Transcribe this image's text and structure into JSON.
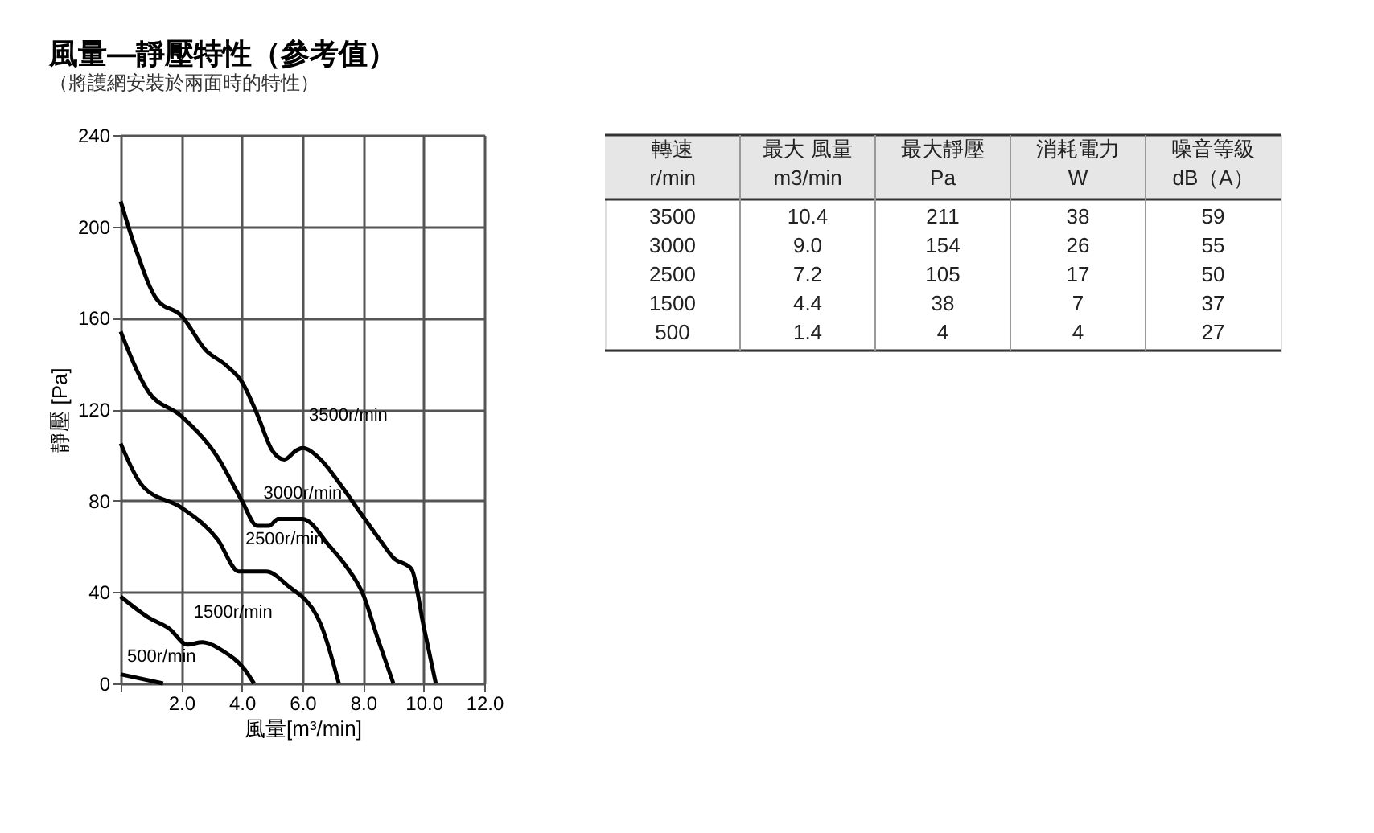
{
  "chart_data": {
    "type": "line",
    "title": "風量—靜壓特性（參考值）",
    "subtitle": "（將護網安裝於兩面時的特性）",
    "xlabel": "風量[m³/min]",
    "ylabel": "靜壓 [Pa]",
    "xlim": [
      0,
      12
    ],
    "ylim": [
      0,
      240
    ],
    "xticks": [
      {
        "value": 0,
        "label": null
      },
      {
        "value": 2,
        "label": "2.0"
      },
      {
        "value": 4,
        "label": "4.0"
      },
      {
        "value": 6,
        "label": "6.0"
      },
      {
        "value": 8,
        "label": "8.0"
      },
      {
        "value": 10,
        "label": "10.0"
      },
      {
        "value": 12,
        "label": "12.0"
      }
    ],
    "yticks": [
      0,
      40,
      80,
      120,
      160,
      200,
      240
    ],
    "grid": true,
    "line_style": "solid",
    "series": [
      {
        "color": "#000000",
        "x": [
          0,
          0.5,
          1.2,
          2.0,
          2.8,
          3.5,
          4.0,
          4.5,
          5.0,
          5.4,
          5.8,
          6.0,
          6.6,
          7.2,
          8.0,
          8.6,
          9.0,
          9.6,
          10.0,
          10.4
        ],
        "values": [
          211,
          190,
          168,
          161,
          146,
          139,
          132,
          118,
          102,
          98,
          102,
          103,
          98,
          88,
          73,
          62,
          55,
          50,
          25,
          0
        ]
      },
      {
        "color": "#000000",
        "x": [
          0,
          0.9,
          2.0,
          3.2,
          4.0,
          4.5,
          4.9,
          5.2,
          6.0,
          6.9,
          7.4,
          8.0,
          8.5,
          9.0
        ],
        "values": [
          154,
          128,
          117,
          99,
          80,
          69,
          69,
          72,
          72,
          60,
          52,
          39,
          19,
          0
        ]
      },
      {
        "color": "#000000",
        "x": [
          0,
          0.75,
          2.0,
          3.2,
          3.9,
          4.8,
          5.5,
          6.6,
          7.2
        ],
        "values": [
          105,
          86,
          77,
          63,
          49,
          49,
          43,
          26,
          0
        ]
      },
      {
        "color": "#000000",
        "x": [
          0,
          0.9,
          1.6,
          2.2,
          2.7,
          3.4,
          4.1,
          4.4
        ],
        "values": [
          38,
          29,
          24,
          17,
          18,
          14,
          6,
          0
        ]
      },
      {
        "color": "#000000",
        "x": [
          0,
          1.4
        ],
        "values": [
          4,
          0
        ]
      }
    ],
    "annotations": [
      {
        "text": "3500r/min",
        "x": 6.0,
        "y": 103
      },
      {
        "text": "3000r/min",
        "x": 4.5,
        "y": 69
      },
      {
        "text": "2500r/min",
        "x": 3.9,
        "y": 49
      },
      {
        "text": "1500r/min",
        "x": 2.2,
        "y": 17
      },
      {
        "text": "500r/min",
        "x": 0,
        "y": 4
      },
      "轉速",
      "最大 風量",
      "最大靜壓",
      "消耗電力",
      "噪音等級",
      "r/min",
      "m3/min",
      "Pa",
      "W",
      "dB（A）",
      "3500",
      "10.4",
      "211",
      "38",
      "59",
      "3000",
      "9.0",
      "154",
      "26",
      "55",
      "2500",
      "7.2",
      "105",
      "17",
      "50",
      "1500",
      "4.4",
      "38",
      "7",
      "37",
      "500",
      "1.4",
      "4",
      "4",
      "27"
    ]
  }
}
